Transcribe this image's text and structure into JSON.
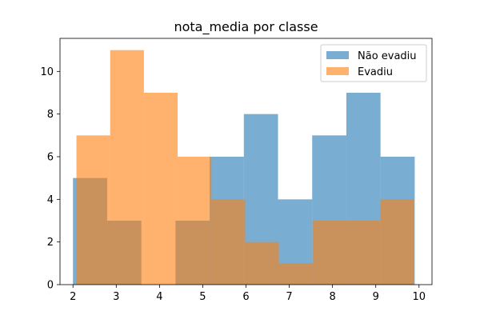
{
  "chart_data": {
    "type": "histogram",
    "title": "nota_media por classe",
    "xlabel": "",
    "ylabel": "",
    "xlim": [
      1.7,
      10.3
    ],
    "ylim": [
      0,
      11.55
    ],
    "xticks": [
      2,
      3,
      4,
      5,
      6,
      7,
      8,
      9,
      10
    ],
    "yticks": [
      0,
      2,
      4,
      6,
      8,
      10
    ],
    "grid": false,
    "legend_position": "upper right",
    "alpha": 0.6,
    "series": [
      {
        "name": "Não evadiu",
        "color": "#1f77b4",
        "bin_edges": [
          2.0,
          2.79,
          3.58,
          4.37,
          5.16,
          5.95,
          6.74,
          7.53,
          8.32,
          9.11,
          9.9
        ],
        "counts": [
          5,
          3,
          0,
          3,
          6,
          8,
          4,
          7,
          9,
          6
        ]
      },
      {
        "name": "Evadiu",
        "color": "#ff7f0e",
        "bin_edges": [
          2.08,
          2.86,
          3.64,
          4.42,
          5.2,
          5.98,
          6.76,
          7.54,
          8.32,
          9.1,
          9.88
        ],
        "counts": [
          7,
          11,
          9,
          6,
          4,
          2,
          1,
          3,
          3,
          4
        ]
      }
    ]
  }
}
